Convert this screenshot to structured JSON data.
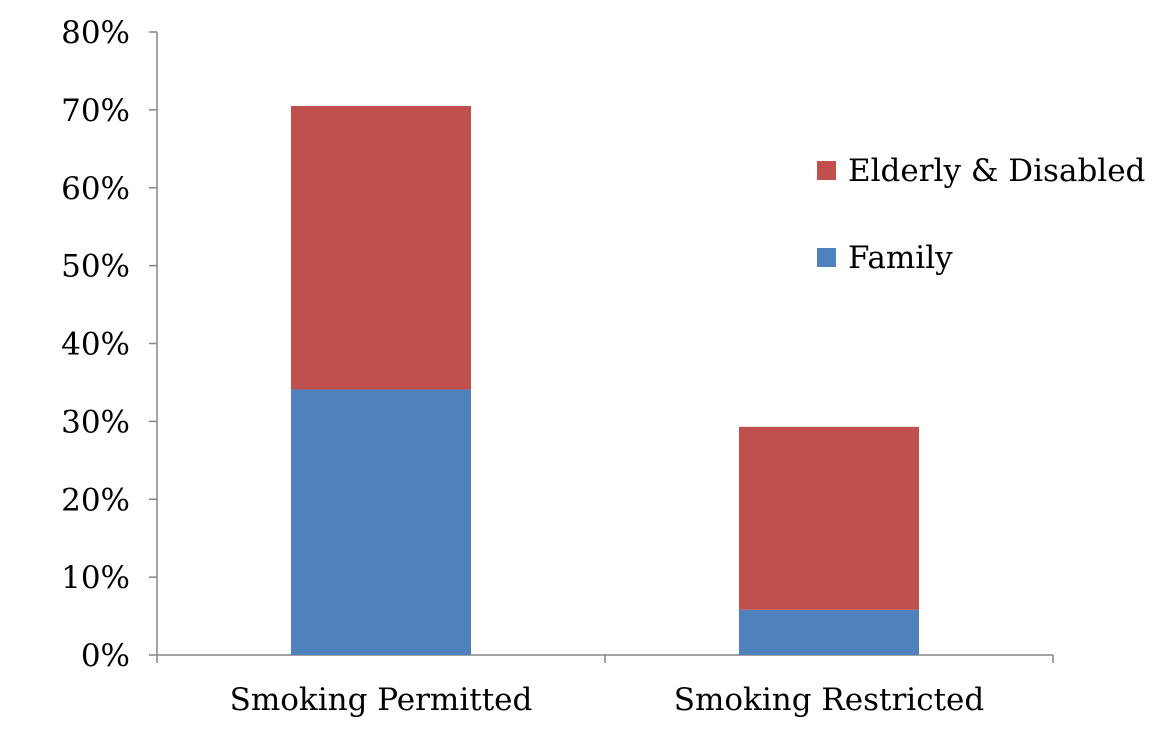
{
  "chart_data": {
    "type": "bar",
    "stacked": true,
    "categories": [
      "Smoking Permitted",
      "Smoking Restricted"
    ],
    "series": [
      {
        "name": "Family",
        "values": [
          34.1,
          5.8
        ],
        "color": "#4F81BD"
      },
      {
        "name": "Elderly & Disabled",
        "values": [
          36.4,
          23.5
        ],
        "color": "#C0504D"
      }
    ],
    "ylim": [
      0,
      80
    ],
    "yticks": [
      0,
      10,
      20,
      30,
      40,
      50,
      60,
      70,
      80
    ],
    "ytick_labels": [
      "0%",
      "10%",
      "20%",
      "30%",
      "40%",
      "50%",
      "60%",
      "70%",
      "80%"
    ],
    "legend_position": "right",
    "legend_order": [
      "Elderly & Disabled",
      "Family"
    ],
    "grid": false,
    "title": "",
    "xlabel": "",
    "ylabel": ""
  }
}
